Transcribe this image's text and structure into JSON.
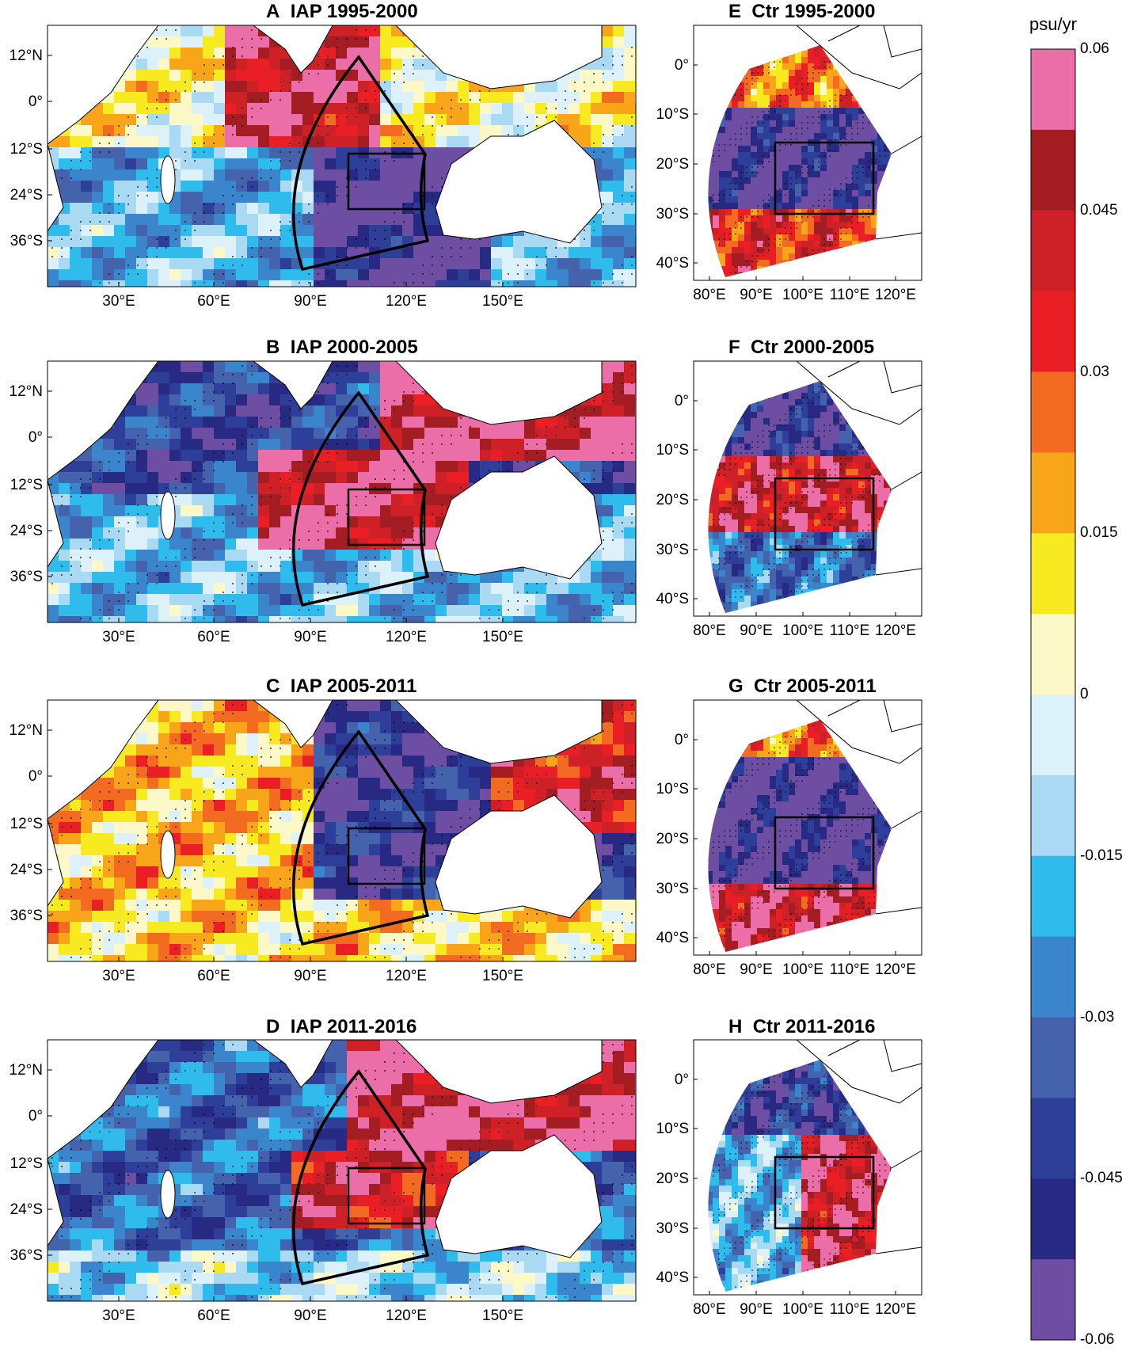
{
  "panels": {
    "A": {
      "letter": "A",
      "title": "IAP 1995-2000",
      "pattern": "A"
    },
    "B": {
      "letter": "B",
      "title": "IAP 2000-2005",
      "pattern": "B"
    },
    "C": {
      "letter": "C",
      "title": "IAP 2005-2011",
      "pattern": "C"
    },
    "D": {
      "letter": "D",
      "title": "IAP 2011-2016",
      "pattern": "D"
    },
    "E": {
      "letter": "E",
      "title": "Ctr 1995-2000",
      "pattern": "E"
    },
    "F": {
      "letter": "F",
      "title": "Ctr 2000-2005",
      "pattern": "F"
    },
    "G": {
      "letter": "G",
      "title": "Ctr 2005-2011",
      "pattern": "G"
    },
    "H": {
      "letter": "H",
      "title": "Ctr 2011-2016",
      "pattern": "H"
    }
  },
  "left_axis": {
    "lat_ticks": [
      "12°N",
      "0°",
      "12°S",
      "24°S",
      "36°S"
    ],
    "lon_ticks": [
      "30°E",
      "60°E",
      "90°E",
      "120°E",
      "150°E"
    ]
  },
  "right_axis": {
    "lat_ticks": [
      "0°",
      "10°S",
      "20°S",
      "30°S",
      "40°S"
    ],
    "lon_ticks": [
      "80°E",
      "90°E",
      "100°E",
      "110°E",
      "120°E"
    ]
  },
  "colorbar": {
    "unit": "psu/yr",
    "labels": [
      "0.06",
      "0.045",
      "0.03",
      "0.015",
      "0",
      "-0.015",
      "-0.03",
      "-0.045",
      "-0.06"
    ],
    "colors": [
      "#ec6ea8",
      "#a41d22",
      "#cd2127",
      "#ea1f26",
      "#f36b21",
      "#f9a51a",
      "#f8ea20",
      "#fdf8c7",
      "#dcf1fa",
      "#a9d9f3",
      "#2fbbec",
      "#3b85cc",
      "#4563ad",
      "#2e3f99",
      "#272983",
      "#6e4ea2"
    ]
  }
}
